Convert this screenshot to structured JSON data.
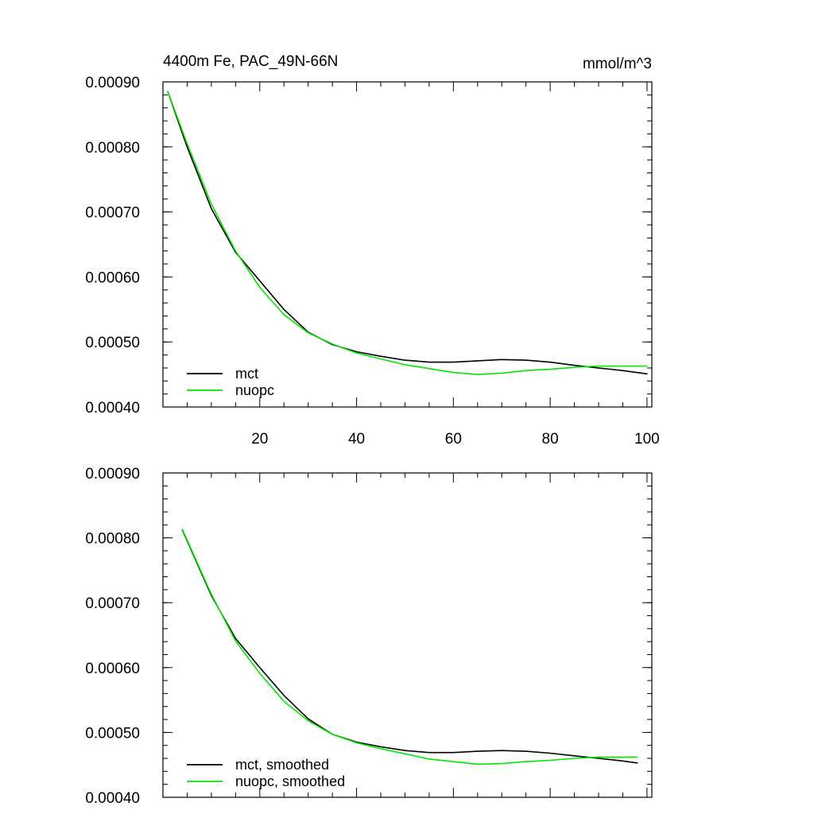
{
  "chart_data": [
    {
      "type": "line",
      "title": "4400m Fe, PAC_49N-66N",
      "units_label": "mmol/m^3",
      "xlabel": "",
      "ylabel": "",
      "xlim": [
        0,
        101
      ],
      "ylim": [
        0.0004,
        0.0009
      ],
      "xticks": [
        20,
        40,
        60,
        80,
        100
      ],
      "xtick_labels": [
        "20",
        "40",
        "60",
        "80",
        "100"
      ],
      "yticks": [
        0.0004,
        0.0005,
        0.0006,
        0.0007,
        0.0008,
        0.0009
      ],
      "ytick_labels": [
        "0.00040",
        "0.00050",
        "0.00060",
        "0.00070",
        "0.00080",
        "0.00090"
      ],
      "grid": false,
      "legend_position": "bottom-left",
      "x": [
        1,
        5,
        10,
        15,
        20,
        25,
        30,
        35,
        40,
        45,
        50,
        55,
        60,
        65,
        70,
        75,
        80,
        85,
        90,
        95,
        100
      ],
      "series": [
        {
          "name": "mct",
          "color": "#000000",
          "values": [
            0.000885,
            0.0008,
            0.000705,
            0.000638,
            0.000594,
            0.00055,
            0.000515,
            0.000496,
            0.000485,
            0.000478,
            0.000472,
            0.000469,
            0.000469,
            0.000471,
            0.000473,
            0.000472,
            0.000469,
            0.000464,
            0.00046,
            0.000456,
            0.000451
          ]
        },
        {
          "name": "nuopc",
          "color": "#00e600",
          "values": [
            0.000885,
            0.000805,
            0.000712,
            0.00064,
            0.000584,
            0.000542,
            0.000514,
            0.000497,
            0.000483,
            0.000474,
            0.000465,
            0.000459,
            0.000453,
            0.00045,
            0.000452,
            0.000456,
            0.000458,
            0.000461,
            0.000463,
            0.000463,
            0.000463
          ]
        }
      ]
    },
    {
      "type": "line",
      "title": "",
      "xlabel": "",
      "ylabel": "",
      "xlim": [
        0,
        101
      ],
      "ylim": [
        0.0004,
        0.0009
      ],
      "xticks": [
        20,
        40,
        60,
        80,
        100
      ],
      "yticks": [
        0.0004,
        0.0005,
        0.0006,
        0.0007,
        0.0008,
        0.0009
      ],
      "ytick_labels": [
        "0.00040",
        "0.00050",
        "0.00060",
        "0.00070",
        "0.00080",
        "0.00090"
      ],
      "grid": false,
      "legend_position": "bottom-left",
      "x": [
        4,
        10,
        15,
        20,
        25,
        30,
        35,
        40,
        45,
        50,
        55,
        60,
        65,
        70,
        75,
        80,
        85,
        90,
        95,
        98
      ],
      "series": [
        {
          "name": "mct, smoothed",
          "color": "#000000",
          "values": [
            0.000812,
            0.000711,
            0.000645,
            0.0006,
            0.000557,
            0.000521,
            0.000497,
            0.000485,
            0.000478,
            0.000472,
            0.000469,
            0.000469,
            0.000471,
            0.000472,
            0.000471,
            0.000468,
            0.000464,
            0.00046,
            0.000456,
            0.000453
          ]
        },
        {
          "name": "nuopc, smoothed",
          "color": "#00e600",
          "values": [
            0.000813,
            0.000713,
            0.000641,
            0.000591,
            0.000548,
            0.000518,
            0.000497,
            0.000484,
            0.000475,
            0.000467,
            0.000459,
            0.000455,
            0.000451,
            0.000452,
            0.000455,
            0.000457,
            0.00046,
            0.000462,
            0.000462,
            0.000462
          ]
        }
      ]
    }
  ]
}
